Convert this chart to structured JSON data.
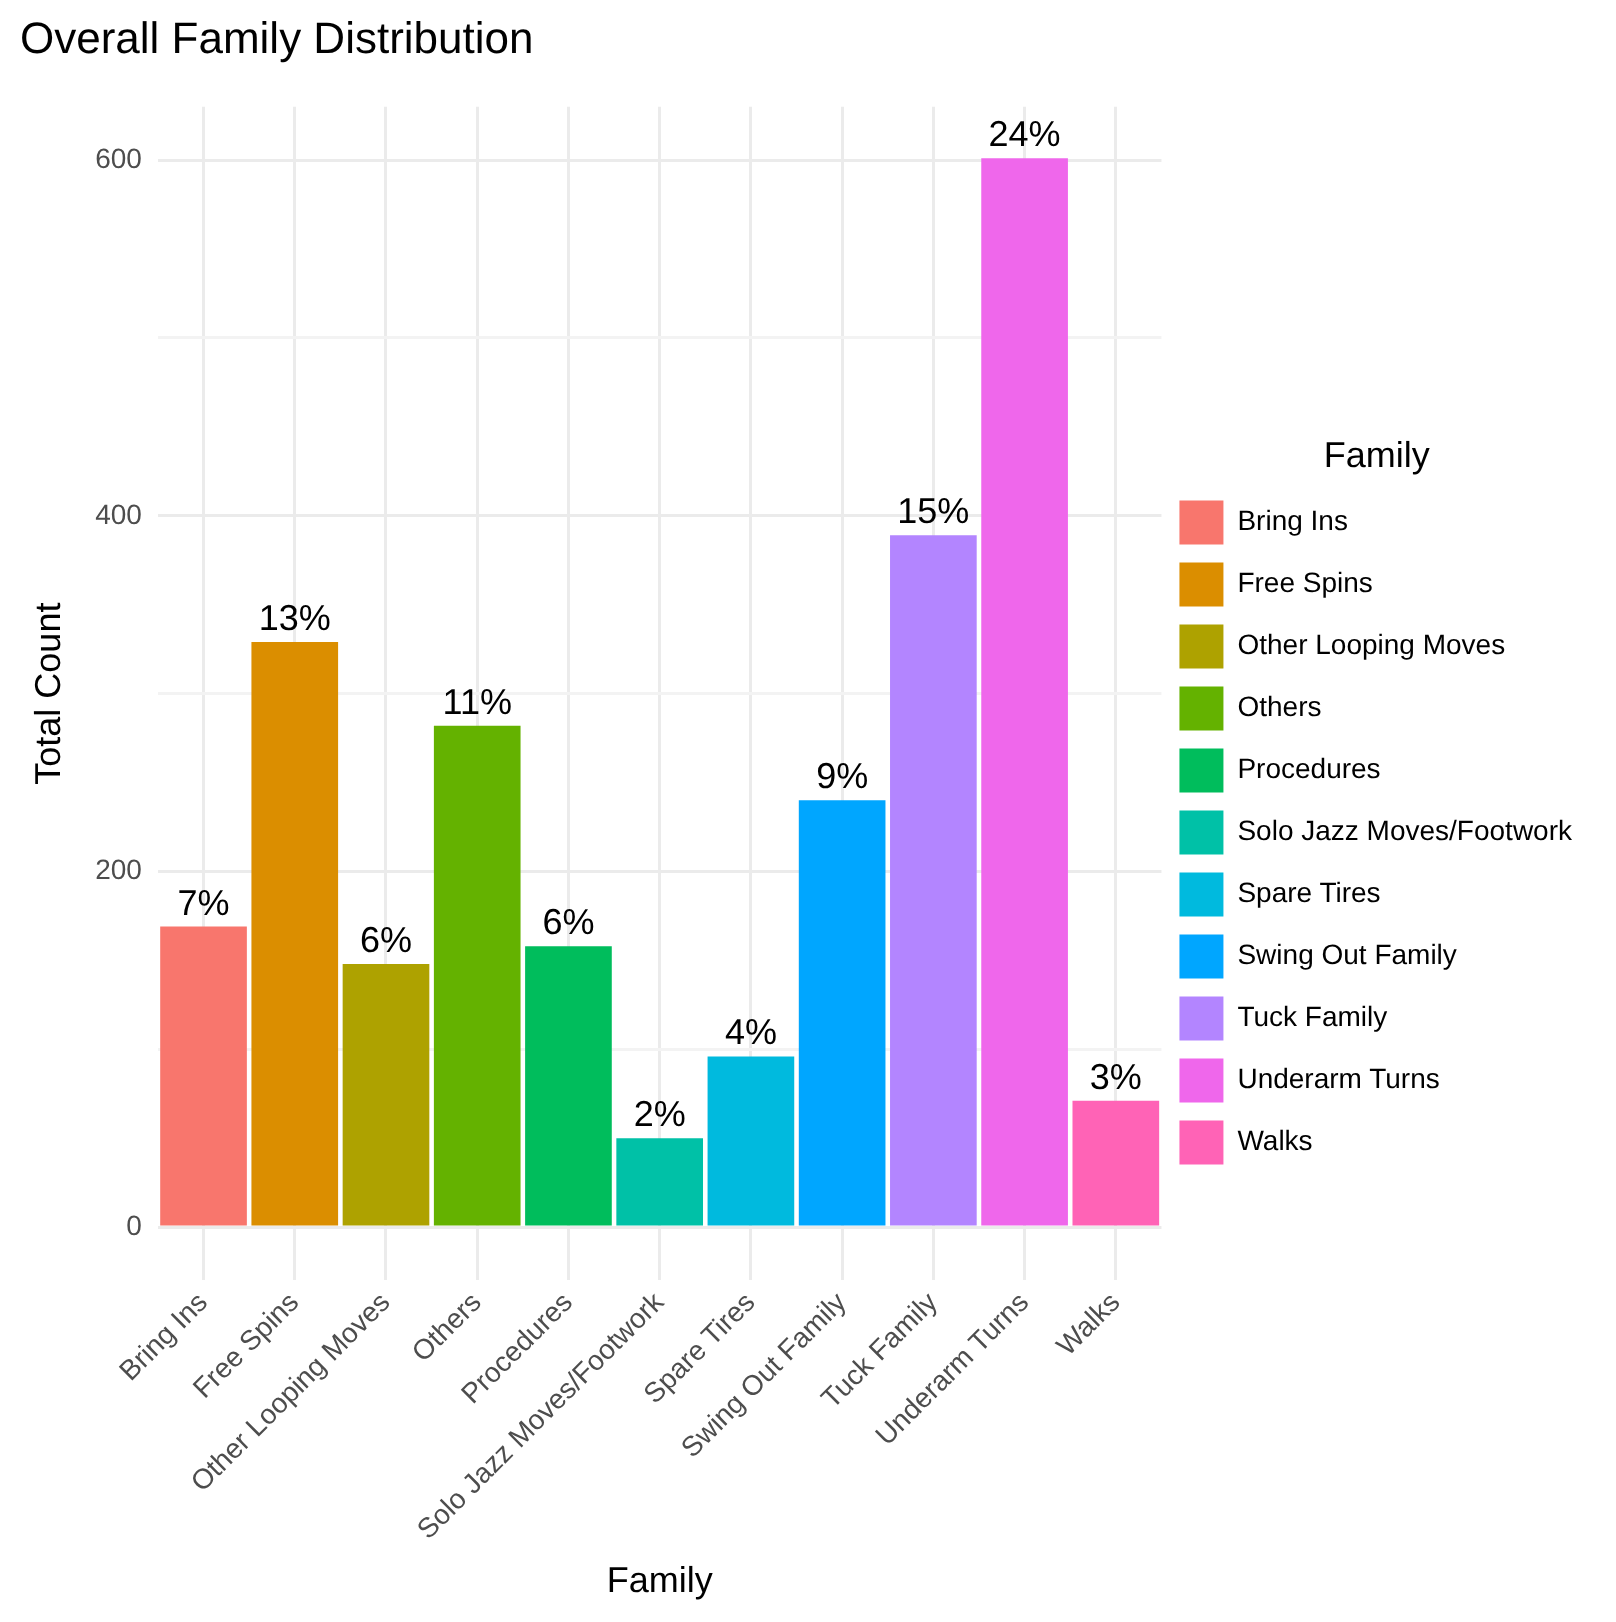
{
  "chart_data": {
    "type": "bar",
    "title": "Overall Family Distribution",
    "xlabel": "Family",
    "ylabel": "Total Count",
    "legend_title": "Family",
    "categories": [
      "Bring Ins",
      "Free Spins",
      "Other Looping Moves",
      "Others",
      "Procedures",
      "Solo Jazz Moves/Footwork",
      "Spare Tires",
      "Swing Out Family",
      "Tuck Family",
      "Underarm Turns",
      "Walks"
    ],
    "series": [
      {
        "name": "Bring Ins",
        "color": "#f8766d",
        "values": [
          169,
          null,
          null,
          null,
          null,
          null,
          null,
          null,
          null,
          null,
          null
        ]
      },
      {
        "name": "Free Spins",
        "color": "#db8e00",
        "values": [
          null,
          329,
          null,
          null,
          null,
          null,
          null,
          null,
          null,
          null,
          null
        ]
      },
      {
        "name": "Other Looping Moves",
        "color": "#aea200",
        "values": [
          null,
          null,
          148,
          null,
          null,
          null,
          null,
          null,
          null,
          null,
          null
        ]
      },
      {
        "name": "Others",
        "color": "#64b200",
        "values": [
          null,
          null,
          null,
          282,
          null,
          null,
          null,
          null,
          null,
          null,
          null
        ]
      },
      {
        "name": "Procedures",
        "color": "#00bd5c",
        "values": [
          null,
          null,
          null,
          null,
          158,
          null,
          null,
          null,
          null,
          null,
          null
        ]
      },
      {
        "name": "Solo Jazz Moves/Footwork",
        "color": "#00c1a7",
        "values": [
          null,
          null,
          null,
          null,
          null,
          50,
          null,
          null,
          null,
          null,
          null
        ]
      },
      {
        "name": "Spare Tires",
        "color": "#00bade",
        "values": [
          null,
          null,
          null,
          null,
          null,
          null,
          96,
          null,
          null,
          null,
          null
        ]
      },
      {
        "name": "Swing Out Family",
        "color": "#00a6ff",
        "values": [
          null,
          null,
          null,
          null,
          null,
          null,
          null,
          240,
          null,
          null,
          null
        ]
      },
      {
        "name": "Tuck Family",
        "color": "#b385ff",
        "values": [
          null,
          null,
          null,
          null,
          null,
          null,
          null,
          null,
          389,
          null,
          null
        ]
      },
      {
        "name": "Underarm Turns",
        "color": "#ef67eb",
        "values": [
          null,
          null,
          null,
          null,
          null,
          null,
          null,
          null,
          null,
          601,
          null
        ]
      },
      {
        "name": "Walks",
        "color": "#ff63b6",
        "values": [
          null,
          null,
          null,
          null,
          null,
          null,
          null,
          null,
          null,
          null,
          71
        ]
      }
    ],
    "annotations": [
      {
        "text": "7%",
        "x": "Bring Ins",
        "y": 169
      },
      {
        "text": "13%",
        "x": "Free Spins",
        "y": 329
      },
      {
        "text": "6%",
        "x": "Other Looping Moves",
        "y": 148
      },
      {
        "text": "11%",
        "x": "Others",
        "y": 282
      },
      {
        "text": "6%",
        "x": "Procedures",
        "y": 158
      },
      {
        "text": "2%",
        "x": "Solo Jazz Moves/Footwork",
        "y": 50
      },
      {
        "text": "4%",
        "x": "Spare Tires",
        "y": 96
      },
      {
        "text": "9%",
        "x": "Swing Out Family",
        "y": 240
      },
      {
        "text": "15%",
        "x": "Tuck Family",
        "y": 389
      },
      {
        "text": "24%",
        "x": "Underarm Turns",
        "y": 601
      },
      {
        "text": "3%",
        "x": "Walks",
        "y": 71
      }
    ],
    "ylim": [
      -30,
      630
    ],
    "yticks": [
      0,
      {
        "value": 100,
        "label": null
      },
      200,
      {
        "value": 300,
        "label": null
      },
      400,
      {
        "value": 500,
        "label": null
      },
      600
    ],
    "grid": true,
    "legend": "right"
  }
}
